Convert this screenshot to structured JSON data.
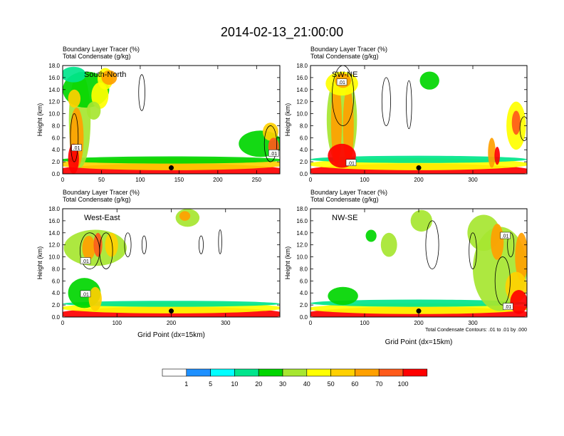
{
  "title": "2014-02-13_21:00:00",
  "colors": {
    "palette": [
      "#ffffff",
      "#1e90ff",
      "#00ffff",
      "#00e58c",
      "#00d600",
      "#a6e630",
      "#ffff00",
      "#ffd000",
      "#ffa000",
      "#ff5a1a",
      "#ff0000"
    ],
    "contour": "#000000",
    "marker": "#000000"
  },
  "chart_data": [
    {
      "id": "south-north",
      "type": "heatmap",
      "panel_label": "South-North",
      "subtitle_lines": [
        "Boundary Layer Tracer   (%)",
        "Total Condensate   (g/kg)"
      ],
      "ylabel": "Height (km)",
      "xlabel": "",
      "xlim": [
        0,
        280
      ],
      "ylim": [
        0,
        18
      ],
      "xticks": [
        "0",
        "50",
        "100",
        "150",
        "200",
        "250"
      ],
      "xtick_values": [
        0,
        50,
        100,
        150,
        200,
        250
      ],
      "yticks": [
        "0.0",
        "2.0",
        "4.0",
        "6.0",
        "8.0",
        "10.0",
        "12.0",
        "14.0",
        "16.0",
        "18.0"
      ],
      "marker": {
        "x": 140,
        "y": 1.0
      },
      "contour_labels": [
        {
          "text": ".01",
          "x": 18,
          "y": 4.3
        },
        {
          "text": ".01",
          "x": 272,
          "y": 3.4
        }
      ],
      "blobs": [
        {
          "x": 140,
          "y": 0.5,
          "rx": 152,
          "ry": 1.2,
          "v": 80
        },
        {
          "x": 140,
          "y": 1.6,
          "rx": 150,
          "ry": 1.0,
          "v": 40
        },
        {
          "x": 140,
          "y": 2.3,
          "rx": 145,
          "ry": 0.6,
          "v": 10
        },
        {
          "x": 22,
          "y": 9,
          "rx": 14,
          "ry": 8,
          "v": 25
        },
        {
          "x": 18,
          "y": 6,
          "rx": 9,
          "ry": 5,
          "v": 55
        },
        {
          "x": 14,
          "y": 2.5,
          "rx": 7,
          "ry": 2.5,
          "v": 75
        },
        {
          "x": 30,
          "y": 14,
          "rx": 30,
          "ry": 3,
          "v": 15
        },
        {
          "x": 14,
          "y": 16.5,
          "rx": 16,
          "ry": 1.3,
          "v": 8
        },
        {
          "x": 55,
          "y": 15.8,
          "rx": 10,
          "ry": 1.8,
          "v": 35
        },
        {
          "x": 48,
          "y": 13,
          "rx": 11,
          "ry": 2.2,
          "v": 30
        },
        {
          "x": 60,
          "y": 16,
          "rx": 10,
          "ry": 1.2,
          "v": 55
        },
        {
          "x": 15,
          "y": 12.5,
          "rx": 8,
          "ry": 1.5,
          "v": 40
        },
        {
          "x": 40,
          "y": 10.5,
          "rx": 9,
          "ry": 1.5,
          "v": 20
        },
        {
          "x": 255,
          "y": 5,
          "rx": 28,
          "ry": 2.2,
          "v": 18
        },
        {
          "x": 268,
          "y": 7,
          "rx": 10,
          "ry": 1.5,
          "v": 45
        },
        {
          "x": 272,
          "y": 4.5,
          "rx": 7,
          "ry": 1.5,
          "v": 65
        }
      ],
      "contours": [
        {
          "x": 102,
          "y": 13.5,
          "rx": 4,
          "ry": 3
        },
        {
          "x": 15,
          "y": 6,
          "rx": 5,
          "ry": 4
        },
        {
          "x": 268,
          "y": 5,
          "rx": 8,
          "ry": 3
        }
      ]
    },
    {
      "id": "sw-ne",
      "type": "heatmap",
      "panel_label": "SW-NE",
      "subtitle_lines": [
        "Boundary Layer Tracer   (%)",
        "Total Condensate   (g/kg)"
      ],
      "ylabel": "Height (km)",
      "xlabel": "",
      "xlim": [
        0,
        400
      ],
      "ylim": [
        0,
        18
      ],
      "xticks": [
        "0",
        "100",
        "200",
        "300"
      ],
      "xtick_values": [
        0,
        100,
        200,
        300
      ],
      "yticks": [
        "0.0",
        "2.0",
        "4.0",
        "6.0",
        "8.0",
        "10.0",
        "12.0",
        "14.0",
        "16.0",
        "18.0"
      ],
      "marker": {
        "x": 200,
        "y": 1.0
      },
      "contour_labels": [
        {
          "text": ".01",
          "x": 58,
          "y": 15.2
        },
        {
          "text": ".01",
          "x": 75,
          "y": 1.8
        }
      ],
      "blobs": [
        {
          "x": 200,
          "y": 0.5,
          "rx": 210,
          "ry": 1.2,
          "v": 80
        },
        {
          "x": 200,
          "y": 1.6,
          "rx": 205,
          "ry": 1.0,
          "v": 35
        },
        {
          "x": 200,
          "y": 2.4,
          "rx": 200,
          "ry": 0.6,
          "v": 8
        },
        {
          "x": 58,
          "y": 9,
          "rx": 28,
          "ry": 8,
          "v": 25
        },
        {
          "x": 48,
          "y": 8.5,
          "rx": 10,
          "ry": 7,
          "v": 50
        },
        {
          "x": 70,
          "y": 8,
          "rx": 10,
          "ry": 6.5,
          "v": 52
        },
        {
          "x": 58,
          "y": 3,
          "rx": 26,
          "ry": 2,
          "v": 75
        },
        {
          "x": 58,
          "y": 15,
          "rx": 30,
          "ry": 2,
          "v": 30
        },
        {
          "x": 60,
          "y": 15.5,
          "rx": 15,
          "ry": 1.2,
          "v": 55
        },
        {
          "x": 220,
          "y": 15.5,
          "rx": 18,
          "ry": 1.5,
          "v": 15
        },
        {
          "x": 380,
          "y": 8,
          "rx": 18,
          "ry": 4,
          "v": 30
        },
        {
          "x": 380,
          "y": 8.5,
          "rx": 8,
          "ry": 2,
          "v": 65
        },
        {
          "x": 335,
          "y": 3.5,
          "rx": 7,
          "ry": 2.5,
          "v": 50
        },
        {
          "x": 345,
          "y": 3,
          "rx": 5,
          "ry": 1.5,
          "v": 70
        }
      ],
      "contours": [
        {
          "x": 60,
          "y": 13,
          "rx": 20,
          "ry": 5
        },
        {
          "x": 140,
          "y": 12,
          "rx": 8,
          "ry": 4
        },
        {
          "x": 182,
          "y": 11.5,
          "rx": 5,
          "ry": 4
        },
        {
          "x": 395,
          "y": 7.5,
          "rx": 8,
          "ry": 2
        }
      ]
    },
    {
      "id": "west-east",
      "type": "heatmap",
      "panel_label": "West-East",
      "subtitle_lines": [
        "Boundary Layer Tracer   (%)",
        "Total Condensate   (g/kg)"
      ],
      "ylabel": "Height (km)",
      "xlabel": "Grid Point (dx=15km)",
      "xlim": [
        0,
        400
      ],
      "ylim": [
        0,
        18
      ],
      "xticks": [
        "0",
        "100",
        "200",
        "300"
      ],
      "xtick_values": [
        0,
        100,
        200,
        300
      ],
      "yticks": [
        "0.0",
        "2.0",
        "4.0",
        "6.0",
        "8.0",
        "10.0",
        "12.0",
        "14.0",
        "16.0",
        "18.0"
      ],
      "marker": {
        "x": 200,
        "y": 1.0
      },
      "contour_labels": [
        {
          "text": ".01",
          "x": 42,
          "y": 9.3
        },
        {
          "text": ".01",
          "x": 42,
          "y": 3.8
        }
      ],
      "blobs": [
        {
          "x": 200,
          "y": 0.5,
          "rx": 210,
          "ry": 1.2,
          "v": 80
        },
        {
          "x": 200,
          "y": 1.5,
          "rx": 205,
          "ry": 0.9,
          "v": 35
        },
        {
          "x": 200,
          "y": 2.2,
          "rx": 200,
          "ry": 0.5,
          "v": 8
        },
        {
          "x": 60,
          "y": 11.5,
          "rx": 58,
          "ry": 3,
          "v": 28
        },
        {
          "x": 48,
          "y": 11.5,
          "rx": 12,
          "ry": 2,
          "v": 55
        },
        {
          "x": 65,
          "y": 12,
          "rx": 8,
          "ry": 2,
          "v": 65
        },
        {
          "x": 90,
          "y": 12,
          "rx": 12,
          "ry": 2,
          "v": 40
        },
        {
          "x": 40,
          "y": 4,
          "rx": 30,
          "ry": 2.5,
          "v": 15
        },
        {
          "x": 60,
          "y": 3,
          "rx": 12,
          "ry": 2,
          "v": 45
        },
        {
          "x": 230,
          "y": 16.5,
          "rx": 22,
          "ry": 1.5,
          "v": 20
        },
        {
          "x": 225,
          "y": 16.8,
          "rx": 10,
          "ry": 0.8,
          "v": 50
        }
      ],
      "contours": [
        {
          "x": 50,
          "y": 11,
          "rx": 18,
          "ry": 3
        },
        {
          "x": 80,
          "y": 11,
          "rx": 12,
          "ry": 3
        },
        {
          "x": 120,
          "y": 12,
          "rx": 6,
          "ry": 2
        },
        {
          "x": 150,
          "y": 12,
          "rx": 4,
          "ry": 1.5
        },
        {
          "x": 255,
          "y": 12,
          "rx": 4,
          "ry": 1.5
        },
        {
          "x": 290,
          "y": 12.5,
          "rx": 3,
          "ry": 2
        }
      ]
    },
    {
      "id": "nw-se",
      "type": "heatmap",
      "panel_label": "NW-SE",
      "subtitle_lines": [
        "Boundary Layer Tracer   (%)",
        "Total Condensate   (g/kg)"
      ],
      "ylabel": "Height (km)",
      "xlabel": "Grid Point (dx=15km)",
      "annotation": "Total Condensate Contours: .01 to .01 by .000",
      "xlim": [
        0,
        400
      ],
      "ylim": [
        0,
        18
      ],
      "xticks": [
        "0",
        "100",
        "200",
        "300"
      ],
      "xtick_values": [
        0,
        100,
        200,
        300
      ],
      "yticks": [
        "0.0",
        "2.0",
        "4.0",
        "6.0",
        "8.0",
        "10.0",
        "12.0",
        "14.0",
        "16.0",
        "18.0"
      ],
      "marker": {
        "x": 200,
        "y": 1.0
      },
      "contour_labels": [
        {
          "text": ".01",
          "x": 360,
          "y": 13.5
        },
        {
          "text": ".01",
          "x": 365,
          "y": 1.7
        }
      ],
      "blobs": [
        {
          "x": 200,
          "y": 0.5,
          "rx": 210,
          "ry": 1.2,
          "v": 80
        },
        {
          "x": 200,
          "y": 1.4,
          "rx": 205,
          "ry": 0.9,
          "v": 30
        },
        {
          "x": 200,
          "y": 2.3,
          "rx": 200,
          "ry": 0.6,
          "v": 8
        },
        {
          "x": 60,
          "y": 3.5,
          "rx": 28,
          "ry": 1.5,
          "v": 12
        },
        {
          "x": 350,
          "y": 8,
          "rx": 50,
          "ry": 7,
          "v": 25
        },
        {
          "x": 320,
          "y": 14,
          "rx": 30,
          "ry": 3,
          "v": 20
        },
        {
          "x": 345,
          "y": 12.5,
          "rx": 12,
          "ry": 3,
          "v": 55
        },
        {
          "x": 390,
          "y": 10,
          "rx": 12,
          "ry": 4,
          "v": 50
        },
        {
          "x": 380,
          "y": 5,
          "rx": 20,
          "ry": 2.5,
          "v": 45
        },
        {
          "x": 385,
          "y": 2.5,
          "rx": 16,
          "ry": 2,
          "v": 75
        },
        {
          "x": 145,
          "y": 12,
          "rx": 15,
          "ry": 2,
          "v": 25
        },
        {
          "x": 205,
          "y": 16,
          "rx": 20,
          "ry": 1.8,
          "v": 20
        },
        {
          "x": 112,
          "y": 13.5,
          "rx": 10,
          "ry": 1,
          "v": 10
        }
      ],
      "contours": [
        {
          "x": 225,
          "y": 12,
          "rx": 12,
          "ry": 4
        },
        {
          "x": 300,
          "y": 11,
          "rx": 7,
          "ry": 3
        },
        {
          "x": 370,
          "y": 12,
          "rx": 6,
          "ry": 2
        },
        {
          "x": 355,
          "y": 6,
          "rx": 14,
          "ry": 4
        }
      ]
    }
  ],
  "colorbar": {
    "labels": [
      "1",
      "5",
      "10",
      "20",
      "30",
      "40",
      "50",
      "60",
      "70",
      "100"
    ],
    "levels": [
      0,
      1,
      5,
      10,
      20,
      30,
      40,
      50,
      60,
      70,
      100
    ]
  }
}
